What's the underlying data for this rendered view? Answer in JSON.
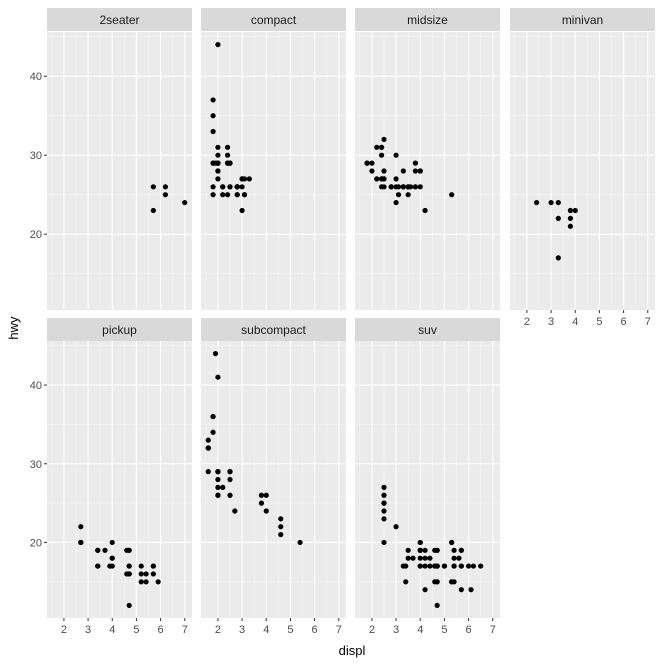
{
  "chart_data": {
    "type": "scatter",
    "facet": "class",
    "xlabel": "displ",
    "ylabel": "hwy",
    "xlim": [
      1.3,
      7.3
    ],
    "ylim": [
      10.4,
      45.6
    ],
    "x_ticks": [
      2,
      3,
      4,
      5,
      6,
      7
    ],
    "y_ticks": [
      20,
      30,
      40
    ],
    "grid": true,
    "colors": {
      "panel_background": "#ebebeb",
      "strip_background": "#d9d9d9",
      "grid_major": "#ffffff",
      "grid_minor": "#f5f5f5",
      "point": "#000000",
      "tick": "#333333"
    },
    "panels": [
      {
        "label": "2seater",
        "points": [
          [
            5.7,
            26
          ],
          [
            5.7,
            23
          ],
          [
            6.2,
            26
          ],
          [
            6.2,
            25
          ],
          [
            7.0,
            24
          ]
        ]
      },
      {
        "label": "compact",
        "points": [
          [
            1.8,
            29
          ],
          [
            1.8,
            29
          ],
          [
            2.0,
            31
          ],
          [
            2.0,
            30
          ],
          [
            2.8,
            26
          ],
          [
            2.8,
            26
          ],
          [
            3.1,
            27
          ],
          [
            1.8,
            26
          ],
          [
            1.8,
            25
          ],
          [
            2.0,
            28
          ],
          [
            2.0,
            27
          ],
          [
            2.8,
            25
          ],
          [
            2.8,
            25
          ],
          [
            3.1,
            25
          ],
          [
            3.1,
            25
          ],
          [
            2.2,
            26
          ],
          [
            2.2,
            26
          ],
          [
            2.4,
            30
          ],
          [
            2.4,
            31
          ],
          [
            3.0,
            27
          ],
          [
            3.3,
            27
          ],
          [
            1.8,
            35
          ],
          [
            1.8,
            37
          ],
          [
            1.8,
            33
          ],
          [
            2.0,
            29
          ],
          [
            2.0,
            29
          ],
          [
            2.0,
            44
          ],
          [
            2.0,
            29
          ],
          [
            2.5,
            29
          ],
          [
            2.5,
            29
          ],
          [
            2.5,
            29
          ],
          [
            2.5,
            26
          ],
          [
            2.5,
            26
          ],
          [
            2.8,
            26
          ],
          [
            2.8,
            26
          ],
          [
            1.9,
            29
          ],
          [
            2.0,
            28
          ],
          [
            2.0,
            29
          ],
          [
            2.0,
            29
          ],
          [
            2.4,
            29
          ],
          [
            2.4,
            29
          ],
          [
            2.8,
            26
          ],
          [
            2.8,
            26
          ],
          [
            3.0,
            27
          ],
          [
            3.0,
            23
          ],
          [
            3.0,
            26
          ],
          [
            2.2,
            25
          ],
          [
            2.4,
            25
          ]
        ]
      },
      {
        "label": "midsize",
        "points": [
          [
            2.4,
            26
          ],
          [
            2.4,
            27
          ],
          [
            3.1,
            26
          ],
          [
            3.5,
            26
          ],
          [
            3.6,
            26
          ],
          [
            2.4,
            30
          ],
          [
            2.4,
            31
          ],
          [
            3.0,
            30
          ],
          [
            3.3,
            26
          ],
          [
            3.8,
            26
          ],
          [
            3.8,
            26
          ],
          [
            3.8,
            29
          ],
          [
            5.3,
            25
          ],
          [
            2.5,
            27
          ],
          [
            2.5,
            26
          ],
          [
            2.5,
            28
          ],
          [
            2.5,
            27
          ],
          [
            2.5,
            32
          ],
          [
            2.8,
            26
          ],
          [
            3.5,
            26
          ],
          [
            3.0,
            24
          ],
          [
            3.5,
            25
          ],
          [
            3.3,
            26
          ],
          [
            3.3,
            26
          ],
          [
            4.0,
            28
          ],
          [
            4.0,
            28
          ],
          [
            1.8,
            29
          ],
          [
            1.8,
            29
          ],
          [
            2.0,
            29
          ],
          [
            2.0,
            28
          ],
          [
            2.8,
            26
          ],
          [
            2.8,
            26
          ],
          [
            3.1,
            25
          ],
          [
            4.2,
            23
          ],
          [
            2.2,
            27
          ],
          [
            2.2,
            31
          ],
          [
            2.4,
            27
          ],
          [
            2.4,
            31
          ],
          [
            3.0,
            27
          ],
          [
            3.0,
            26
          ],
          [
            3.5,
            26
          ],
          [
            4.0,
            26
          ],
          [
            3.3,
            28
          ],
          [
            3.8,
            28
          ]
        ]
      },
      {
        "label": "minivan",
        "points": [
          [
            2.4,
            24
          ],
          [
            3.0,
            24
          ],
          [
            3.3,
            24
          ],
          [
            3.3,
            22
          ],
          [
            3.3,
            17
          ],
          [
            3.8,
            22
          ],
          [
            3.8,
            21
          ],
          [
            3.8,
            23
          ],
          [
            4.0,
            23
          ]
        ]
      },
      {
        "label": "pickup",
        "points": [
          [
            2.7,
            20
          ],
          [
            2.7,
            22
          ],
          [
            3.4,
            17
          ],
          [
            3.4,
            19
          ],
          [
            4.0,
            18
          ],
          [
            4.7,
            17
          ],
          [
            4.7,
            17
          ],
          [
            4.7,
            19
          ],
          [
            5.2,
            16
          ],
          [
            5.7,
            17
          ],
          [
            5.9,
            15
          ],
          [
            4.7,
            16
          ],
          [
            4.7,
            12
          ],
          [
            4.7,
            16
          ],
          [
            5.2,
            17
          ],
          [
            5.2,
            15
          ],
          [
            5.7,
            16
          ],
          [
            3.9,
            17
          ],
          [
            4.7,
            19
          ],
          [
            4.7,
            16
          ],
          [
            2.7,
            20
          ],
          [
            2.7,
            20
          ],
          [
            3.4,
            19
          ],
          [
            3.4,
            17
          ],
          [
            4.0,
            20
          ],
          [
            4.0,
            17
          ],
          [
            4.0,
            18
          ],
          [
            3.7,
            19
          ],
          [
            4.6,
            16
          ],
          [
            5.4,
            15
          ],
          [
            5.4,
            16
          ],
          [
            5.7,
            17
          ],
          [
            4.6,
            19
          ]
        ]
      },
      {
        "label": "subcompact",
        "points": [
          [
            3.8,
            26
          ],
          [
            3.8,
            25
          ],
          [
            4.0,
            26
          ],
          [
            4.0,
            24
          ],
          [
            4.6,
            21
          ],
          [
            4.6,
            22
          ],
          [
            4.6,
            23
          ],
          [
            5.4,
            20
          ],
          [
            1.6,
            33
          ],
          [
            1.6,
            32
          ],
          [
            1.6,
            32
          ],
          [
            1.6,
            29
          ],
          [
            1.6,
            32
          ],
          [
            1.8,
            34
          ],
          [
            1.8,
            36
          ],
          [
            1.8,
            36
          ],
          [
            2.0,
            29
          ],
          [
            2.0,
            26
          ],
          [
            2.0,
            27
          ],
          [
            2.0,
            28
          ],
          [
            2.0,
            29
          ],
          [
            2.7,
            24
          ],
          [
            2.0,
            41
          ],
          [
            1.9,
            44
          ],
          [
            2.0,
            29
          ],
          [
            2.5,
            26
          ],
          [
            2.5,
            29
          ],
          [
            2.5,
            28
          ],
          [
            2.5,
            29
          ],
          [
            2.2,
            27
          ],
          [
            2.0,
            26
          ]
        ]
      },
      {
        "label": "suv",
        "points": [
          [
            5.3,
            20
          ],
          [
            5.3,
            15
          ],
          [
            5.3,
            20
          ],
          [
            5.7,
            17
          ],
          [
            6.0,
            17
          ],
          [
            5.7,
            17
          ],
          [
            5.7,
            19
          ],
          [
            6.2,
            17
          ],
          [
            6.5,
            17
          ],
          [
            4.7,
            17
          ],
          [
            5.7,
            19
          ],
          [
            3.7,
            18
          ],
          [
            4.7,
            17
          ],
          [
            4.7,
            19
          ],
          [
            4.0,
            19
          ],
          [
            4.2,
            17
          ],
          [
            4.4,
            17
          ],
          [
            4.6,
            17
          ],
          [
            5.4,
            17
          ],
          [
            5.4,
            19
          ],
          [
            4.0,
            17
          ],
          [
            4.0,
            20
          ],
          [
            4.6,
            15
          ],
          [
            5.0,
            17
          ],
          [
            4.2,
            14
          ],
          [
            4.7,
            15
          ],
          [
            4.7,
            17
          ],
          [
            5.7,
            14
          ],
          [
            6.1,
            14
          ],
          [
            4.0,
            19
          ],
          [
            4.2,
            18
          ],
          [
            4.4,
            18
          ],
          [
            5.4,
            15
          ],
          [
            3.3,
            17
          ],
          [
            4.0,
            19
          ],
          [
            4.0,
            17
          ],
          [
            4.7,
            15
          ],
          [
            4.7,
            17
          ],
          [
            4.2,
            19
          ],
          [
            5.3,
            15
          ],
          [
            5.4,
            18
          ],
          [
            2.5,
            25
          ],
          [
            2.5,
            24
          ],
          [
            2.5,
            27
          ],
          [
            2.5,
            25
          ],
          [
            2.5,
            26
          ],
          [
            2.5,
            23
          ],
          [
            2.5,
            20
          ],
          [
            3.0,
            22
          ],
          [
            3.4,
            17
          ],
          [
            3.4,
            15
          ],
          [
            4.0,
            20
          ],
          [
            4.7,
            12
          ],
          [
            4.7,
            19
          ],
          [
            5.6,
            18
          ],
          [
            4.6,
            19
          ],
          [
            5.4,
            17
          ],
          [
            3.5,
            19
          ],
          [
            3.5,
            18
          ],
          [
            4.0,
            18
          ],
          [
            4.0,
            19
          ],
          [
            4.6,
            17
          ],
          [
            5.0,
            17
          ]
        ]
      }
    ]
  }
}
